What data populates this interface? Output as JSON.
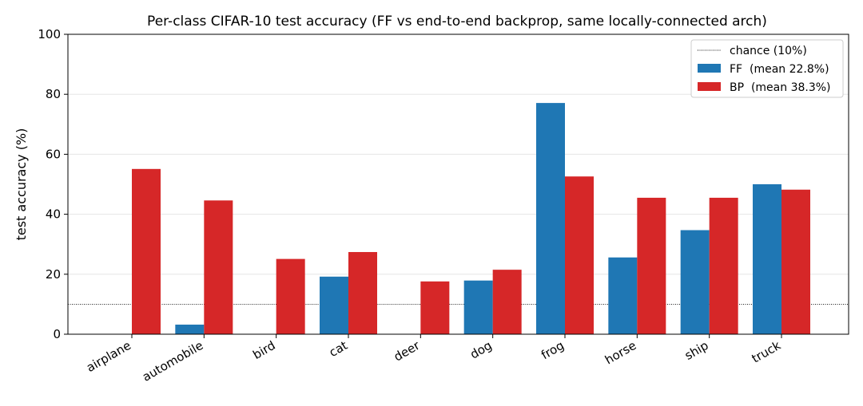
{
  "chart_data": {
    "type": "bar",
    "title": "Per-class CIFAR-10 test accuracy (FF vs end-to-end backprop, same locally-connected arch)",
    "xlabel": "",
    "ylabel": "test accuracy (%)",
    "ylim": [
      0,
      100
    ],
    "yticks": [
      0,
      20,
      40,
      60,
      80,
      100
    ],
    "grid": "horizontal",
    "legend_position": "top-right",
    "categories": [
      "airplane",
      "automobile",
      "bird",
      "cat",
      "deer",
      "dog",
      "frog",
      "horse",
      "ship",
      "truck"
    ],
    "series": [
      {
        "name": "FF  (mean 22.8%)",
        "color": "#1f77b4",
        "values": [
          0,
          3.2,
          0,
          19.2,
          0,
          17.9,
          77.1,
          25.6,
          34.7,
          50.0
        ]
      },
      {
        "name": "BP  (mean 38.3%)",
        "color": "#d62728",
        "values": [
          55.1,
          44.6,
          25.1,
          27.4,
          17.6,
          21.5,
          52.6,
          45.5,
          45.5,
          48.2
        ]
      }
    ],
    "reference_line": {
      "label": "chance (10%)",
      "value": 10,
      "style": "dotted",
      "color": "#000000"
    }
  }
}
